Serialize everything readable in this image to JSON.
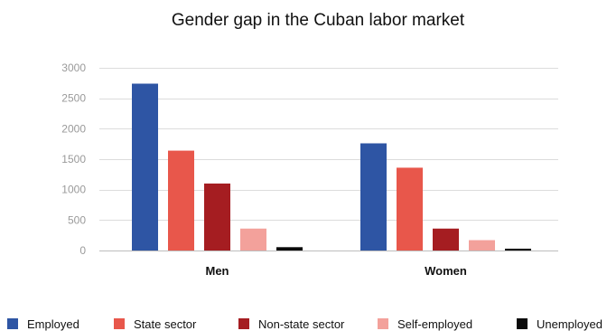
{
  "chart_data": {
    "type": "bar",
    "title": "Gender gap in the Cuban labor market",
    "xlabel": "",
    "ylabel": "",
    "categories": [
      "Men",
      "Women"
    ],
    "yticks": [
      "0",
      "500",
      "1000",
      "1500",
      "2000",
      "2500",
      "3000"
    ],
    "ylim": [
      0,
      3000
    ],
    "grid": true,
    "legend_position": "bottom",
    "series": [
      {
        "name": "Employed",
        "color": "#2e55a4",
        "values": [
          2740,
          1760
        ]
      },
      {
        "name": "State sector",
        "color": "#e8574b",
        "values": [
          1640,
          1360
        ]
      },
      {
        "name": "Non-state sector",
        "color": "#a51d21",
        "values": [
          1100,
          360
        ]
      },
      {
        "name": "Self-employed",
        "color": "#f3a19b",
        "values": [
          360,
          170
        ]
      },
      {
        "name": "Unemployed",
        "color": "#0a0a0a",
        "values": [
          55,
          30
        ]
      }
    ]
  }
}
